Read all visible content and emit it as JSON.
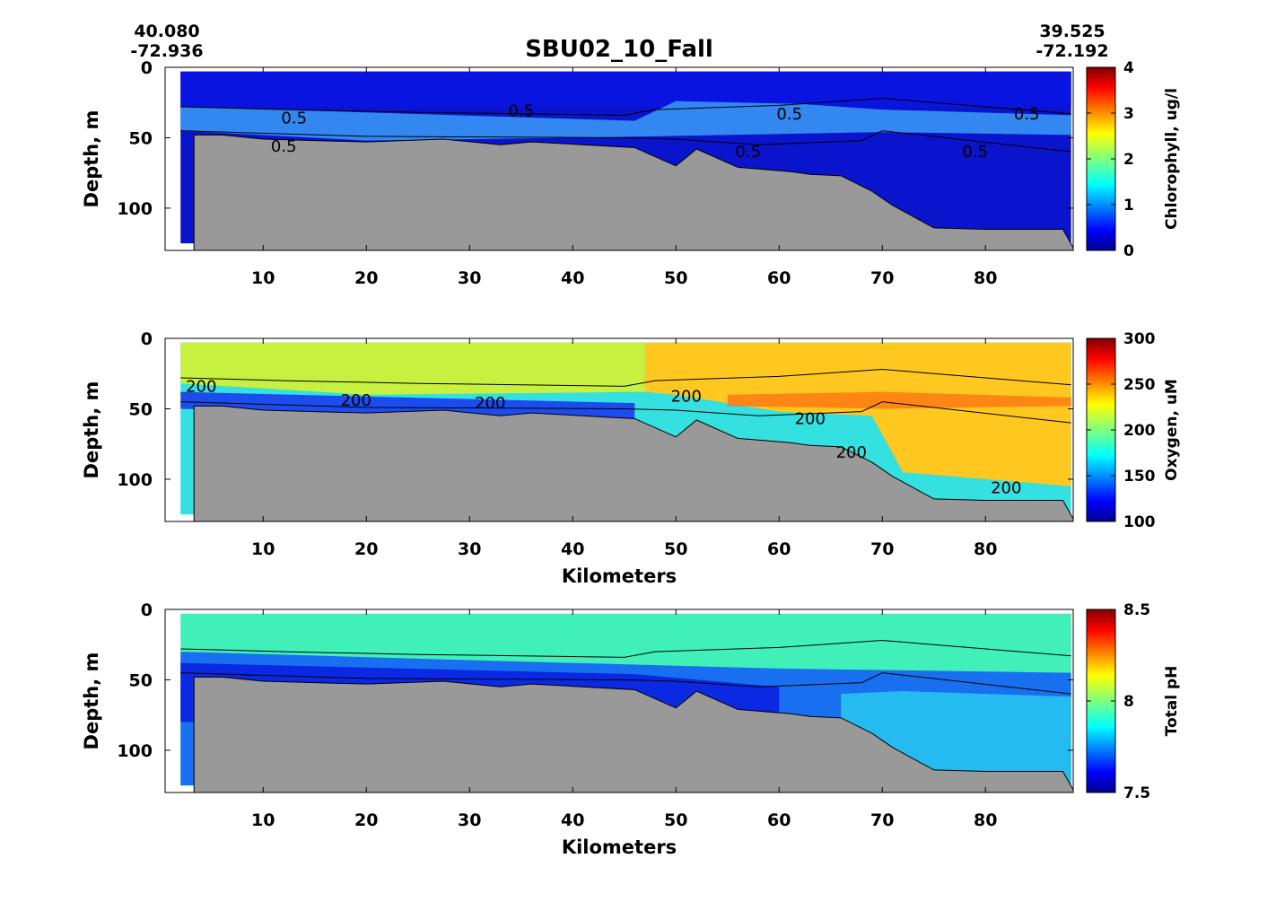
{
  "figure": {
    "title": "SBU02_10_Fall",
    "start_coord": {
      "lat": "40.080",
      "lon": "-72.936"
    },
    "end_coord": {
      "lat": "39.525",
      "lon": "-72.192"
    }
  },
  "chart_data": [
    {
      "type": "heatmap",
      "id": "chlorophyll",
      "ylabel": "Depth, m",
      "xlabel": "",
      "xticks": [
        "10",
        "20",
        "30",
        "40",
        "50",
        "60",
        "70",
        "80"
      ],
      "yticks": [
        "0",
        "50",
        "100"
      ],
      "xlim": [
        0.5,
        88.5
      ],
      "ylim": [
        130,
        0
      ],
      "colorbar": {
        "label": "Chlorophyll, ug/l",
        "ticks": [
          "0",
          "1",
          "2",
          "3",
          "4"
        ],
        "range": [
          0,
          4
        ]
      },
      "contour_labels": [
        "0.5",
        "0.5",
        "0.5",
        "0.5",
        "0.5",
        "0.5",
        "0.5"
      ],
      "contour_level": 0.5,
      "colors": {
        "surface": "#0a14e0",
        "max_layer": "#3a9cf6",
        "deep": "#0a14cc"
      }
    },
    {
      "type": "heatmap",
      "id": "oxygen",
      "ylabel": "Depth, m",
      "xlabel": "Kilometers",
      "xticks": [
        "10",
        "20",
        "30",
        "40",
        "50",
        "60",
        "70",
        "80"
      ],
      "yticks": [
        "0",
        "50",
        "100"
      ],
      "xlim": [
        0.5,
        88.5
      ],
      "ylim": [
        130,
        0
      ],
      "colorbar": {
        "label": "Oxygen, uM",
        "ticks": [
          "100",
          "150",
          "200",
          "250",
          "300"
        ],
        "range": [
          100,
          300
        ]
      },
      "contour_labels": [
        "200",
        "200",
        "200",
        "200",
        "200",
        "200",
        "200"
      ],
      "contour_level": 200,
      "colors": {
        "surface_west": "#c8f040",
        "surface_east": "#ffc820",
        "hot_layer": "#ff6a10",
        "bottom_water": "#34e0e0",
        "deep_band": "#1a3cf0"
      }
    },
    {
      "type": "heatmap",
      "id": "ph",
      "ylabel": "Depth, m",
      "xlabel": "Kilometers",
      "xticks": [
        "10",
        "20",
        "30",
        "40",
        "50",
        "60",
        "70",
        "80"
      ],
      "yticks": [
        "0",
        "50",
        "100"
      ],
      "xlim": [
        0.5,
        88.5
      ],
      "ylim": [
        130,
        0
      ],
      "colorbar": {
        "label": "Total pH",
        "ticks": [
          "7.5",
          "8",
          "8.5"
        ],
        "range": [
          7.5,
          8.5
        ]
      },
      "colors": {
        "surface": "#40f0b8",
        "mid": "#1870f0",
        "low": "#0a20e0",
        "bottom_east": "#28c8f0"
      }
    }
  ],
  "bathymetry": {
    "color": "#999999",
    "x_km": [
      3.3,
      6.0,
      10.0,
      20.0,
      27.5,
      33.0,
      36.0,
      46.0,
      50.0,
      52.0,
      56.0,
      61.0,
      63.0,
      66.0,
      69.0,
      71.0,
      75.0,
      80.0,
      87.5,
      88.5
    ],
    "depth_m": [
      48,
      48,
      51,
      53,
      51,
      55,
      53,
      57,
      70,
      58,
      71,
      74,
      76,
      77,
      88,
      98,
      114,
      115,
      115,
      128
    ],
    "flat_bottom_m": 130
  }
}
